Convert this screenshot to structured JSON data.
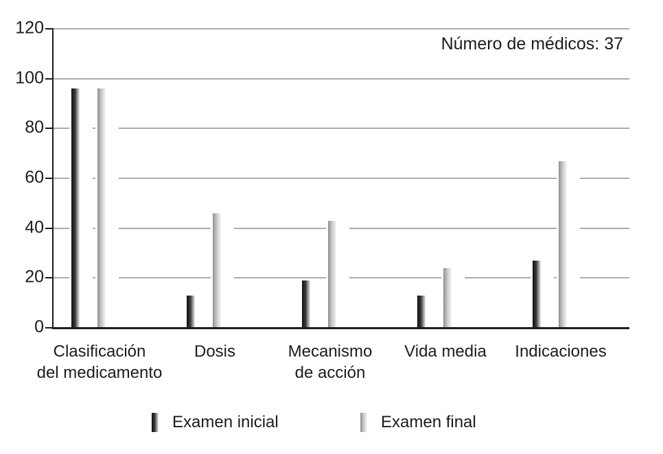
{
  "chart_data": {
    "type": "bar",
    "title": "",
    "annotation": "Número de médicos: 37",
    "categories": [
      "Clasificación\ndel medicamento",
      "Dosis",
      "Mecanismo\nde acción",
      "Vida media",
      "Indicaciones"
    ],
    "series": [
      {
        "name": "Examen inicial",
        "values": [
          96,
          13,
          19,
          13,
          27
        ],
        "gradient": [
          "#101010",
          "#3a3a3a",
          "#ededed"
        ]
      },
      {
        "name": "Examen final",
        "values": [
          96,
          46,
          43,
          24,
          67
        ],
        "gradient": [
          "#8f8f8f",
          "#c6c6c6",
          "#f7f7f7"
        ]
      }
    ],
    "xlabel": "",
    "ylabel": "",
    "ylim": [
      0,
      120
    ],
    "yticks": [
      0,
      20,
      40,
      60,
      80,
      100,
      120
    ],
    "grid": true,
    "legend_position": "bottom",
    "colors": {
      "axis": "#1c1c1c",
      "gridline": "#ababab",
      "text": "#1c1c1c",
      "background": "#ffffff"
    }
  }
}
